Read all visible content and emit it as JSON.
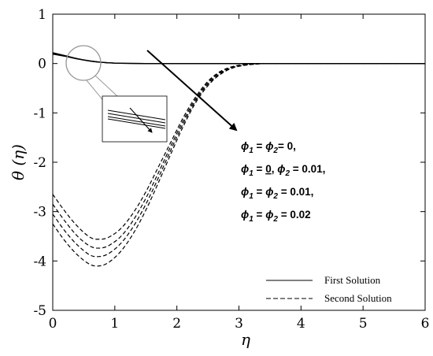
{
  "chart_data": {
    "type": "line",
    "xlabel": "η",
    "ylabel": "θ (η)",
    "xlim": [
      0,
      6
    ],
    "ylim": [
      -5,
      1
    ],
    "x_ticks": [
      "0",
      "1",
      "2",
      "3",
      "4",
      "5",
      "6"
    ],
    "y_ticks": [
      "1",
      "0",
      "-1",
      "-2",
      "-3",
      "-4",
      "-5"
    ],
    "first_solution": {
      "x": [
        0,
        0.2,
        0.4,
        0.6,
        0.8,
        1.0,
        1.2,
        1.5,
        2,
        3,
        4,
        5,
        6
      ],
      "curves": [
        [
          0.22,
          0.16,
          0.1,
          0.055,
          0.025,
          0.01,
          0.004,
          0.001,
          0,
          0,
          0,
          0,
          0
        ],
        [
          0.21,
          0.155,
          0.097,
          0.053,
          0.024,
          0.009,
          0.004,
          0.001,
          0,
          0,
          0,
          0,
          0
        ],
        [
          0.2,
          0.15,
          0.094,
          0.051,
          0.023,
          0.009,
          0.003,
          0.001,
          0,
          0,
          0,
          0,
          0
        ],
        [
          0.19,
          0.145,
          0.091,
          0.049,
          0.022,
          0.008,
          0.003,
          0.001,
          0,
          0,
          0,
          0,
          0
        ]
      ]
    },
    "second_solution": {
      "x": [
        0,
        0.2,
        0.4,
        0.6,
        0.75,
        0.9,
        1.1,
        1.3,
        1.5,
        1.7,
        1.9,
        2.1,
        2.3,
        2.5,
        2.7,
        2.9,
        3.1,
        3.3,
        3.5,
        4,
        5,
        6
      ],
      "curves": [
        [
          -2.65,
          -3.0,
          -3.3,
          -3.52,
          -3.56,
          -3.52,
          -3.34,
          -3.02,
          -2.6,
          -2.1,
          -1.6,
          -1.1,
          -0.68,
          -0.36,
          -0.16,
          -0.06,
          -0.02,
          -0.005,
          0,
          0,
          0,
          0
        ],
        [
          -2.85,
          -3.2,
          -3.5,
          -3.7,
          -3.74,
          -3.69,
          -3.5,
          -3.17,
          -2.73,
          -2.22,
          -1.68,
          -1.16,
          -0.72,
          -0.39,
          -0.18,
          -0.07,
          -0.025,
          -0.006,
          0,
          0,
          0,
          0
        ],
        [
          -3.05,
          -3.4,
          -3.68,
          -3.88,
          -3.91,
          -3.85,
          -3.64,
          -3.3,
          -2.85,
          -2.32,
          -1.76,
          -1.22,
          -0.76,
          -0.42,
          -0.2,
          -0.08,
          -0.03,
          -0.008,
          0,
          0,
          0,
          0
        ],
        [
          -3.25,
          -3.6,
          -3.88,
          -4.07,
          -4.1,
          -4.03,
          -3.8,
          -3.44,
          -2.97,
          -2.42,
          -1.84,
          -1.28,
          -0.8,
          -0.45,
          -0.22,
          -0.09,
          -0.035,
          -0.01,
          0,
          0,
          0,
          0
        ]
      ]
    },
    "annotation_lines": [
      {
        "sym1": "ϕ",
        "sub1": "1",
        "eq1": " = ",
        "sym2": "ϕ",
        "sub2": "2",
        "tail": "= 0,"
      },
      {
        "sym1": "ϕ",
        "sub1": "1",
        "eq1": " = ",
        "mid": "0",
        "sep": ", ",
        "sym2": "ϕ",
        "sub2": "2",
        "tail": " = 0.01,"
      },
      {
        "sym1": "ϕ",
        "sub1": "1",
        "eq1": " = ",
        "sym2": "ϕ",
        "sub2": "2",
        "tail": " = 0.01,"
      },
      {
        "sym1": "ϕ",
        "sub1": "1",
        "eq1": " = ",
        "sym2": "ϕ",
        "sub2": "2",
        "tail": " = 0.02"
      }
    ],
    "legend": {
      "position": "bottom-right",
      "entries": [
        {
          "label": "First Solution",
          "style": "solid"
        },
        {
          "label": "Second Solution",
          "style": "dashed"
        }
      ]
    },
    "grid": false
  }
}
